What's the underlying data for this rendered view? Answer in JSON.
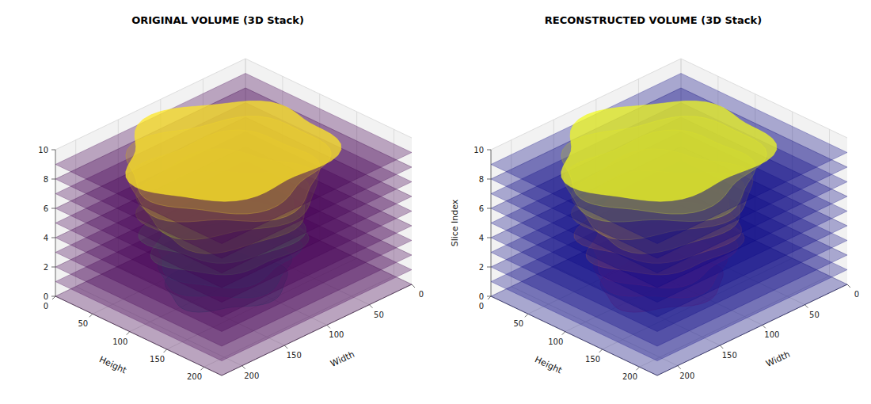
{
  "chart_data": [
    {
      "type": "volume3d",
      "title": "ORIGINAL VOLUME (3D Stack)",
      "xlabel": "Width",
      "ylabel": "Height",
      "xlim": [
        0,
        224
      ],
      "ylim": [
        0,
        224
      ],
      "zlim": [
        0,
        10
      ],
      "xticks": [
        0,
        50,
        100,
        150,
        200
      ],
      "yticks": [
        0,
        50,
        100,
        150,
        200
      ],
      "zticks": [
        0,
        2,
        4,
        6,
        8,
        10
      ],
      "slices": [
        0,
        1,
        2,
        3,
        4,
        5,
        6,
        7,
        8,
        9
      ],
      "color": "#440154",
      "grid": true
    },
    {
      "type": "volume3d",
      "title": "RECONSTRUCTED VOLUME (3D Stack)",
      "xlabel": "Width",
      "ylabel": "Height",
      "zlabel": "Slice Index",
      "xlim": [
        0,
        224
      ],
      "ylim": [
        0,
        224
      ],
      "zlim": [
        0,
        10
      ],
      "xticks": [
        0,
        50,
        100,
        150,
        200
      ],
      "yticks": [
        0,
        50,
        100,
        150,
        200
      ],
      "zticks": [
        0,
        2,
        4,
        6,
        8,
        10
      ],
      "slices": [
        0,
        1,
        2,
        3,
        4,
        5,
        6,
        7,
        8,
        9
      ],
      "color": "#0d0887",
      "grid": true
    }
  ]
}
